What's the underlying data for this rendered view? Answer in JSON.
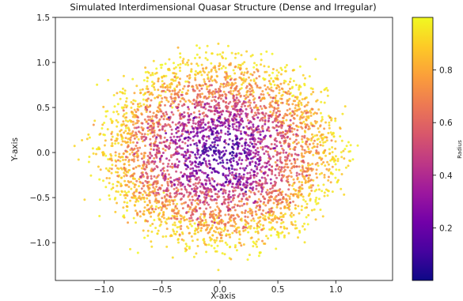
{
  "chart_data": {
    "type": "scatter",
    "title": "Simulated Interdimensional Quasar Structure (Dense and Irregular)",
    "xlabel": "X-axis",
    "ylabel": "Y-axis",
    "xlim": [
      -1.42,
      1.49
    ],
    "ylim": [
      -1.42,
      1.5
    ],
    "xticks": [
      -1.0,
      -0.5,
      0.0,
      0.5,
      1.0
    ],
    "xtick_labels": [
      "−1.0",
      "−0.5",
      "0.0",
      "0.5",
      "1.0"
    ],
    "yticks": [
      -1.0,
      -0.5,
      0.0,
      0.5,
      1.0,
      1.5
    ],
    "ytick_labels": [
      "−1.0",
      "−0.5",
      "0.0",
      "0.5",
      "1.0",
      "1.5"
    ],
    "grid": false,
    "colormap": "plasma",
    "point_count": 4000,
    "radius_range": [
      0.0,
      1.0
    ],
    "colorbar": {
      "label": "Radius",
      "range": [
        0.0,
        1.0
      ],
      "ticks": [
        0.2,
        0.4,
        0.6,
        0.8
      ],
      "tick_labels": [
        "0.2",
        "0.4",
        "0.6",
        "0.8"
      ]
    },
    "colors": {
      "plasma_stops": [
        "#0d0887",
        "#46039f",
        "#7201a8",
        "#9c179e",
        "#bd3786",
        "#d8576b",
        "#ed7953",
        "#fb9f3a",
        "#fdca26",
        "#f0f921"
      ]
    }
  }
}
